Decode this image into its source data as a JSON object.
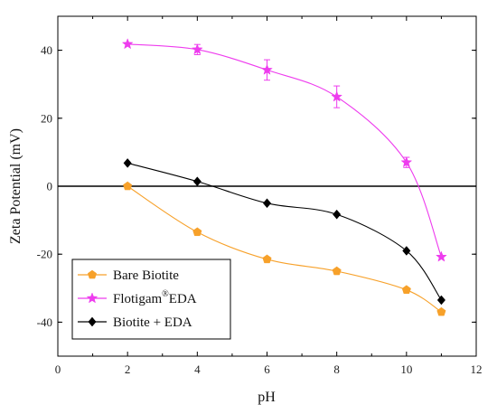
{
  "chart_data": {
    "type": "line",
    "xlabel": "pH",
    "ylabel": "Zeta Potential (mV)",
    "xlim": [
      0,
      12
    ],
    "ylim": [
      -50,
      50
    ],
    "xticks": [
      0,
      2,
      4,
      6,
      8,
      10,
      12
    ],
    "yticks": [
      -40,
      -20,
      0,
      20,
      40
    ],
    "zero_line": true,
    "grid": false,
    "legend_position": "bottom-left",
    "series": [
      {
        "name": "Bare Biotite",
        "marker": "pentagon",
        "color": "#f7a12a",
        "x": [
          2,
          4,
          6,
          8,
          10,
          11
        ],
        "y": [
          0,
          -13.5,
          -21.5,
          -25,
          -30.5,
          -37
        ]
      },
      {
        "name": "Flotigam",
        "name_superscript": "®",
        "name_suffix": "EDA",
        "marker": "star",
        "color": "#ee3cee",
        "x": [
          2,
          4,
          6,
          8,
          10,
          11
        ],
        "y": [
          41.8,
          40.2,
          34.2,
          26.3,
          7.0,
          -20.8
        ],
        "err": [
          0,
          1.5,
          3.0,
          3.2,
          1.5,
          0
        ]
      },
      {
        "name": "Biotite + EDA",
        "marker": "diamond",
        "color": "#000000",
        "x": [
          2,
          4,
          6,
          8,
          10,
          11
        ],
        "y": [
          6.8,
          1.4,
          -5.0,
          -8.3,
          -19.0,
          -33.5
        ]
      }
    ]
  }
}
